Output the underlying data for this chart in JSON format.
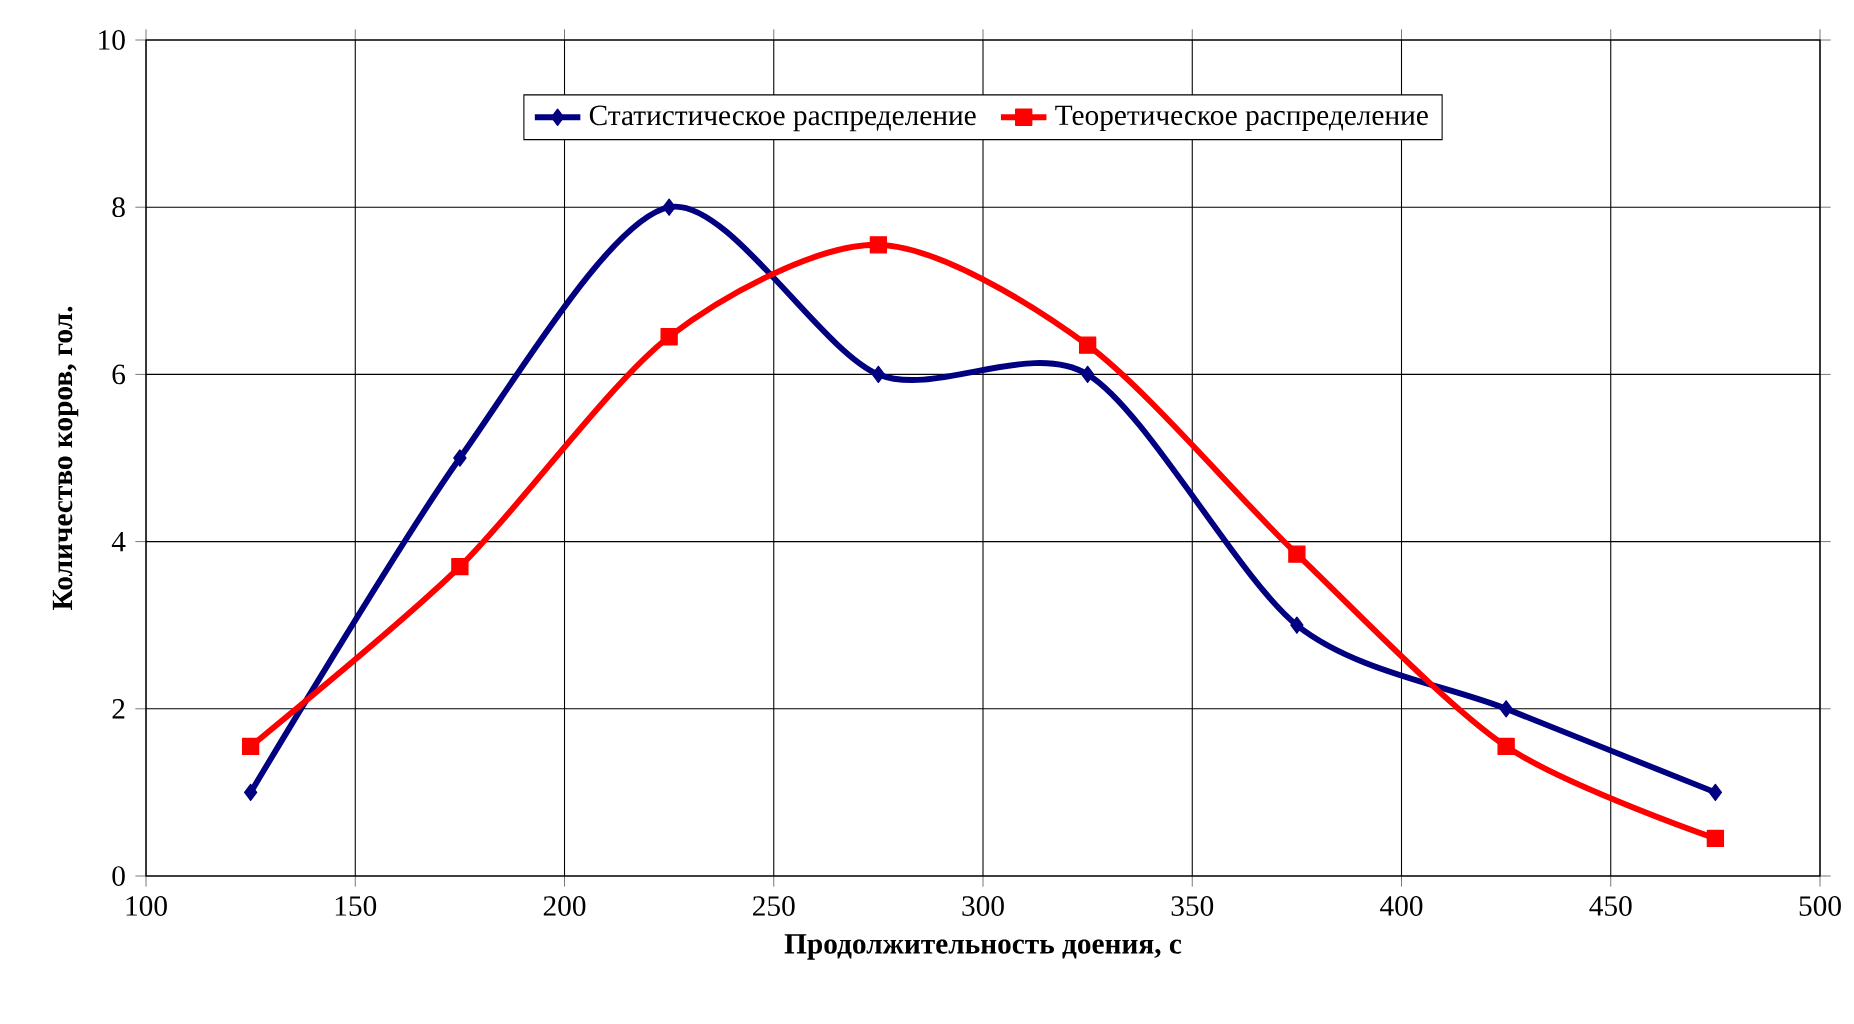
{
  "chart_data": {
    "type": "line",
    "xlabel": "Продолжительность доения, с",
    "ylabel": "Количество коров,  гол.",
    "x": [
      125,
      175,
      225,
      275,
      325,
      375,
      425,
      475
    ],
    "series": [
      {
        "name": "Статистическое распределение",
        "color": "#000080",
        "marker": "diamond",
        "values": [
          1,
          5,
          8,
          6,
          6,
          3,
          2,
          1
        ]
      },
      {
        "name": "Теоретическое распределение",
        "color": "#ff0000",
        "marker": "square",
        "values": [
          1.55,
          3.7,
          6.45,
          7.55,
          6.35,
          3.85,
          1.55,
          0.45
        ]
      }
    ],
    "xlim": [
      100,
      500
    ],
    "xticks": [
      100,
      150,
      200,
      250,
      300,
      350,
      400,
      450,
      500
    ],
    "ylim": [
      0,
      10
    ],
    "yticks": [
      0,
      2,
      4,
      6,
      8,
      10
    ],
    "grid": true,
    "legend": "top",
    "line_style": "solid"
  }
}
